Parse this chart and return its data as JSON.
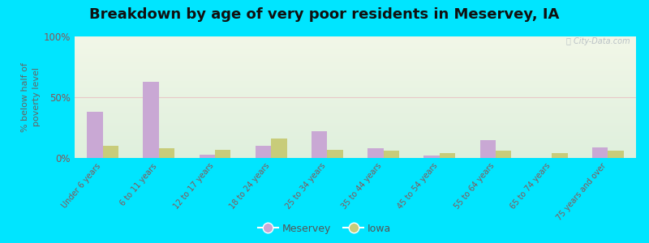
{
  "title": "Breakdown by age of very poor residents in Meservey, IA",
  "ylabel": "% below half of\npoverty level",
  "categories": [
    "Under 6 years",
    "6 to 11 years",
    "12 to 17 years",
    "18 to 24 years",
    "25 to 34 years",
    "35 to 44 years",
    "45 to 54 years",
    "55 to 64 years",
    "65 to 74 years",
    "75 years and over"
  ],
  "meservey_values": [
    38,
    63,
    3,
    10,
    22,
    8,
    2,
    15,
    0,
    9
  ],
  "iowa_values": [
    10,
    8,
    7,
    16,
    7,
    6,
    4,
    6,
    4,
    6
  ],
  "meservey_color": "#c9a8d4",
  "iowa_color": "#c8cc7a",
  "ylim": [
    0,
    100
  ],
  "yticks": [
    0,
    50,
    100
  ],
  "ytick_labels": [
    "0%",
    "50%",
    "100%"
  ],
  "background_top": "#f2f7e8",
  "background_bottom": "#dff0dd",
  "outer_background": "#00e5ff",
  "title_fontsize": 13,
  "bar_width": 0.28,
  "legend_labels": [
    "Meservey",
    "Iowa"
  ],
  "watermark": "ⓘ City-Data.com",
  "grid_color": "#e8c8c8",
  "tick_color": "#885555",
  "ylabel_color": "#666666"
}
